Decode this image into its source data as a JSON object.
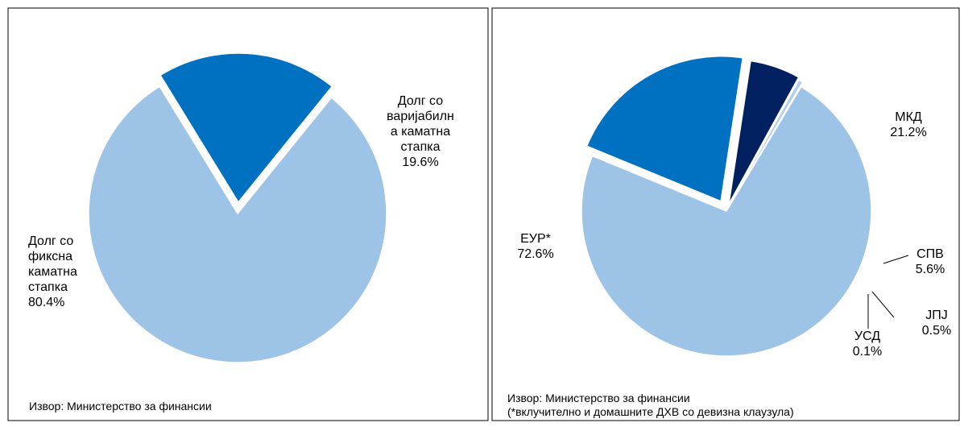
{
  "chart_data": [
    {
      "type": "pie",
      "categories": [
        "Долг со фиксна каматна стапка",
        "Долг со варијабилна каматна стапка"
      ],
      "values": [
        80.4,
        19.6
      ],
      "value_labels": [
        "80.4%",
        "19.6%"
      ],
      "colors": [
        "#9dc3e6",
        "#0070c0"
      ],
      "source": "Извор: Министерство за финансии"
    },
    {
      "type": "pie",
      "categories": [
        "ЕУР*",
        "МКД",
        "СПВ",
        "ЈПЈ",
        "УСД"
      ],
      "values": [
        72.6,
        21.2,
        5.6,
        0.5,
        0.1
      ],
      "value_labels": [
        "72.6%",
        "21.2%",
        "5.6%",
        "0.5%",
        "0.1%"
      ],
      "colors": [
        "#9dc3e6",
        "#0070c0",
        "#002060",
        "#b4cde8",
        "#dde8f4"
      ],
      "source": "Извор: Министерство за финансии",
      "note": "(*вклучително и домашните ДХВ со девизна клаузула)"
    }
  ]
}
